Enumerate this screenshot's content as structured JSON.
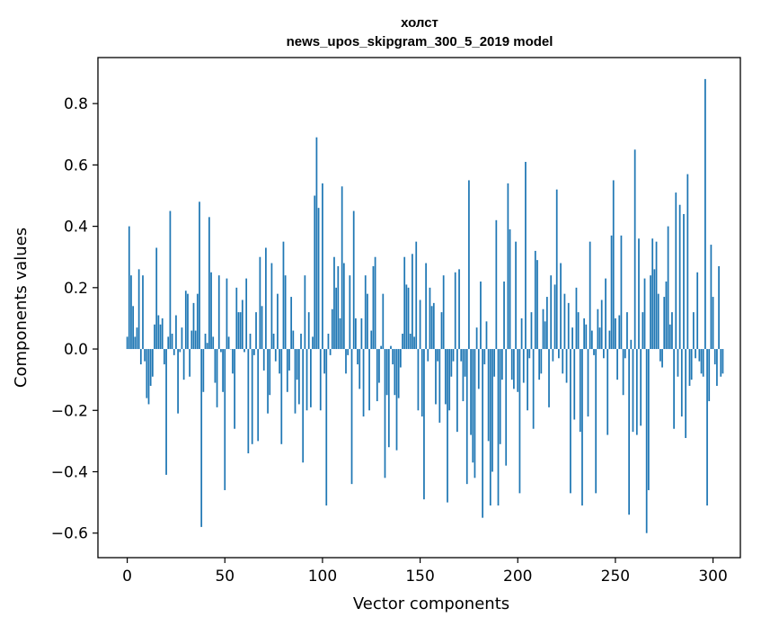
{
  "chart_data": {
    "type": "bar",
    "title_line1": "холст",
    "title_line2": "news_upos_skipgram_300_5_2019 model",
    "xlabel": "Vector components",
    "ylabel": "Components values",
    "xlim": [
      -15,
      314
    ],
    "ylim": [
      -0.68,
      0.95
    ],
    "xticks": [
      0,
      50,
      100,
      150,
      200,
      250,
      300
    ],
    "xtick_labels": [
      "0",
      "50",
      "100",
      "150",
      "200",
      "250",
      "300"
    ],
    "yticks": [
      -0.6,
      -0.4,
      -0.2,
      0.0,
      0.2,
      0.4,
      0.6,
      0.8
    ],
    "ytick_labels": [
      "−0.6",
      "−0.4",
      "−0.2",
      "0.0",
      "0.2",
      "0.4",
      "0.6",
      "0.8"
    ],
    "grid": false,
    "series_color": "#1f77b4",
    "values": [
      0.04,
      0.4,
      0.24,
      0.14,
      0.04,
      0.07,
      0.26,
      -0.05,
      0.24,
      -0.04,
      -0.16,
      -0.18,
      -0.12,
      -0.09,
      0.08,
      0.33,
      0.11,
      0.08,
      0.1,
      -0.05,
      -0.41,
      0.04,
      0.45,
      0.05,
      -0.02,
      0.11,
      -0.21,
      -0.01,
      0.07,
      -0.1,
      0.19,
      0.18,
      -0.09,
      0.06,
      0.15,
      0.06,
      0.18,
      0.48,
      -0.58,
      -0.14,
      0.05,
      0.02,
      0.43,
      0.25,
      0.04,
      -0.11,
      -0.19,
      0.24,
      -0.01,
      -0.14,
      -0.46,
      0.23,
      0.04,
      0.0,
      -0.08,
      -0.26,
      0.2,
      0.12,
      0.12,
      0.16,
      -0.01,
      0.23,
      -0.34,
      0.05,
      -0.31,
      -0.02,
      0.12,
      -0.3,
      0.3,
      0.14,
      -0.07,
      0.33,
      -0.21,
      -0.15,
      0.28,
      0.05,
      -0.04,
      0.18,
      -0.08,
      -0.31,
      0.35,
      0.24,
      -0.14,
      -0.07,
      0.17,
      0.06,
      -0.21,
      -0.1,
      -0.18,
      0.05,
      -0.37,
      0.24,
      -0.2,
      0.12,
      -0.19,
      0.04,
      0.5,
      0.69,
      0.46,
      -0.2,
      0.54,
      -0.08,
      -0.51,
      0.05,
      -0.02,
      0.13,
      0.3,
      0.2,
      0.27,
      0.1,
      0.53,
      0.28,
      -0.08,
      -0.02,
      0.24,
      -0.44,
      0.45,
      0.1,
      -0.05,
      -0.13,
      0.1,
      -0.22,
      0.24,
      0.18,
      -0.2,
      0.06,
      0.27,
      0.3,
      -0.17,
      -0.11,
      0.01,
      0.18,
      -0.42,
      -0.15,
      -0.32,
      0.01,
      -0.05,
      -0.15,
      -0.33,
      -0.16,
      -0.06,
      0.05,
      0.3,
      0.21,
      0.2,
      0.05,
      0.31,
      0.04,
      0.35,
      -0.2,
      0.16,
      -0.22,
      -0.49,
      0.28,
      -0.04,
      0.2,
      0.14,
      0.15,
      -0.18,
      -0.04,
      -0.24,
      0.12,
      0.24,
      -0.18,
      -0.5,
      -0.2,
      -0.09,
      -0.04,
      0.25,
      -0.27,
      0.26,
      -0.04,
      -0.17,
      -0.09,
      -0.44,
      0.55,
      -0.28,
      -0.37,
      -0.42,
      0.07,
      -0.13,
      0.22,
      -0.55,
      -0.05,
      0.09,
      -0.3,
      -0.51,
      -0.4,
      -0.09,
      0.42,
      -0.51,
      -0.31,
      -0.1,
      0.22,
      -0.38,
      0.54,
      0.39,
      -0.1,
      -0.13,
      0.35,
      -0.14,
      -0.47,
      0.1,
      -0.11,
      0.61,
      -0.2,
      -0.03,
      0.12,
      -0.26,
      0.32,
      0.29,
      -0.1,
      -0.08,
      0.13,
      0.09,
      0.17,
      -0.19,
      0.24,
      -0.04,
      0.21,
      0.52,
      -0.03,
      0.28,
      -0.08,
      0.18,
      -0.11,
      0.15,
      -0.47,
      0.07,
      -0.23,
      0.2,
      0.12,
      -0.27,
      -0.51,
      0.1,
      0.08,
      -0.22,
      0.35,
      0.06,
      -0.02,
      -0.47,
      0.13,
      0.07,
      0.16,
      -0.03,
      0.23,
      -0.28,
      0.06,
      0.37,
      0.55,
      0.1,
      -0.1,
      0.11,
      0.37,
      -0.15,
      -0.03,
      0.12,
      -0.54,
      0.03,
      -0.27,
      0.65,
      -0.28,
      0.36,
      -0.25,
      0.12,
      0.23,
      -0.6,
      -0.46,
      0.24,
      0.36,
      0.26,
      0.35,
      0.18,
      -0.04,
      -0.06,
      0.17,
      0.22,
      0.4,
      0.08,
      0.12,
      -0.26,
      0.51,
      -0.09,
      0.47,
      -0.22,
      0.44,
      -0.29,
      0.57,
      -0.12,
      -0.1,
      0.12,
      -0.03,
      0.25,
      -0.04,
      -0.08,
      -0.09,
      0.88,
      -0.51,
      -0.17,
      0.34,
      0.17,
      -0.05,
      -0.12,
      0.27,
      -0.09,
      -0.08
    ]
  }
}
